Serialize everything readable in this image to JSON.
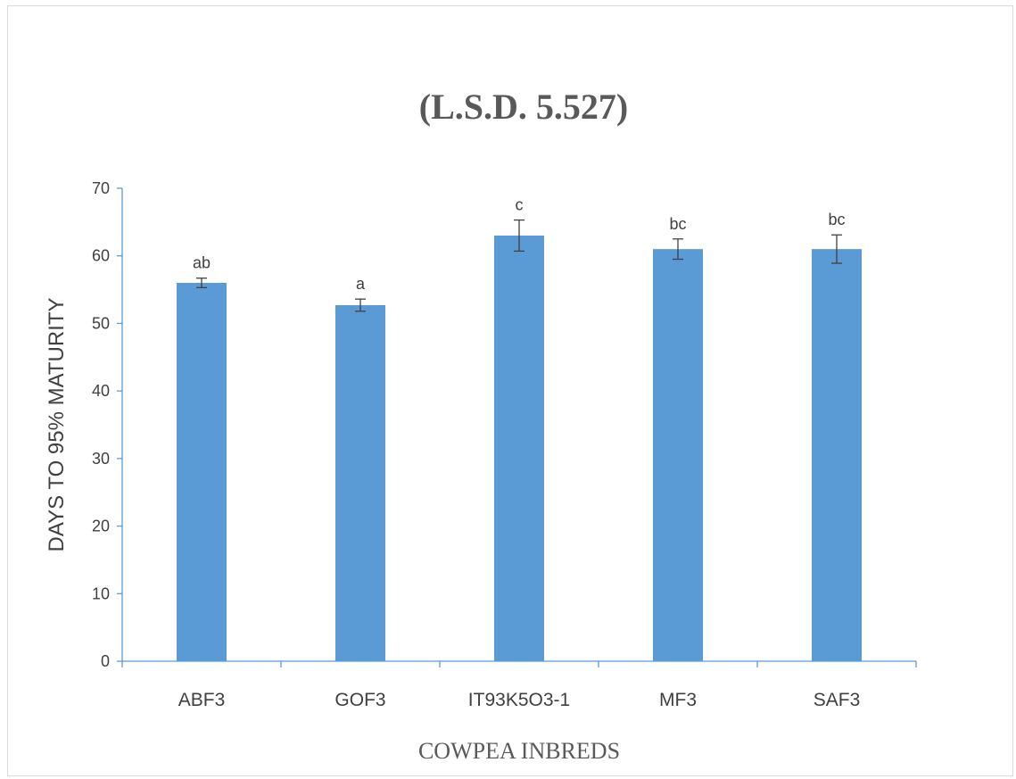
{
  "chart_data": {
    "type": "bar",
    "title": "(L.S.D.  5.527)",
    "xlabel": "COWPEA INBREDS",
    "ylabel": "DAYS TO 95% MATURITY",
    "ylim": [
      0,
      70
    ],
    "yticks": [
      0,
      10,
      20,
      30,
      40,
      50,
      60,
      70
    ],
    "categories": [
      "ABF3",
      "GOF3",
      "IT93K5O3-1",
      "MF3",
      "SAF3"
    ],
    "values": [
      56,
      52.7,
      63,
      61,
      61
    ],
    "errors": [
      0.7,
      0.9,
      2.3,
      1.5,
      2.1
    ],
    "labels": [
      "ab",
      "a",
      "c",
      "bc",
      "bc"
    ],
    "grid": false,
    "legend": "none",
    "bar_color": "#5b9bd5",
    "axis_color": "#5b9bd5",
    "errorbar_color": "#404040"
  }
}
